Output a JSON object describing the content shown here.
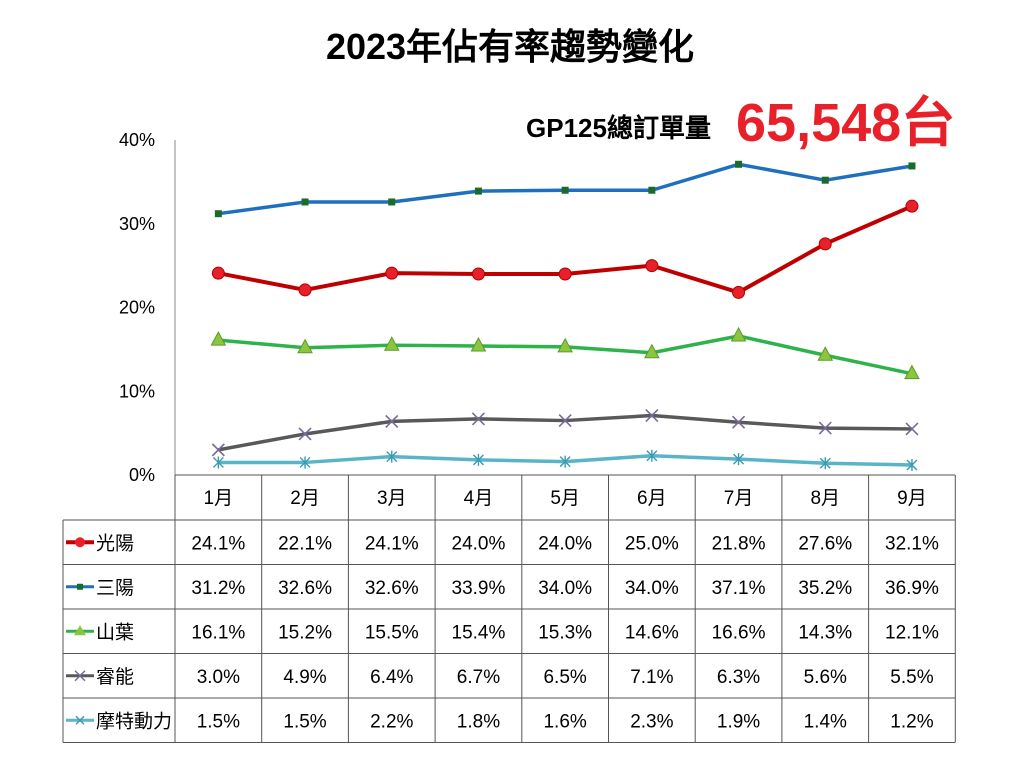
{
  "title": "2023年佔有率趨勢變化",
  "order_label": "GP125總訂單量",
  "order_value": "65,548台",
  "chart_data": {
    "type": "line",
    "title": "2023年佔有率趨勢變化",
    "categories": [
      "1月",
      "2月",
      "3月",
      "4月",
      "5月",
      "6月",
      "7月",
      "8月",
      "9月"
    ],
    "y_ticks": [
      "0%",
      "10%",
      "20%",
      "30%",
      "40%"
    ],
    "ylim": [
      0,
      40
    ],
    "grid": false,
    "legend": "data-table",
    "series": [
      {
        "name": "光陽",
        "color": "#c00000",
        "marker": "circle",
        "values": [
          24.1,
          22.1,
          24.1,
          24.0,
          24.0,
          25.0,
          21.8,
          27.6,
          32.1
        ],
        "labels": [
          "24.1%",
          "22.1%",
          "24.1%",
          "24.0%",
          "24.0%",
          "25.0%",
          "21.8%",
          "27.6%",
          "32.1%"
        ]
      },
      {
        "name": "三陽",
        "color": "#1f6fbf",
        "marker": "square",
        "values": [
          31.2,
          32.6,
          32.6,
          33.9,
          34.0,
          34.0,
          37.1,
          35.2,
          36.9
        ],
        "labels": [
          "31.2%",
          "32.6%",
          "32.6%",
          "33.9%",
          "34.0%",
          "34.0%",
          "37.1%",
          "35.2%",
          "36.9%"
        ]
      },
      {
        "name": "山葉",
        "color": "#2db34a",
        "marker": "triangle",
        "values": [
          16.1,
          15.2,
          15.5,
          15.4,
          15.3,
          14.6,
          16.6,
          14.3,
          12.1
        ],
        "labels": [
          "16.1%",
          "15.2%",
          "15.5%",
          "15.4%",
          "15.3%",
          "14.6%",
          "16.6%",
          "14.3%",
          "12.1%"
        ]
      },
      {
        "name": "睿能",
        "color": "#595959",
        "marker": "x",
        "values": [
          3.0,
          4.9,
          6.4,
          6.7,
          6.5,
          7.1,
          6.3,
          5.6,
          5.5
        ],
        "labels": [
          "3.0%",
          "4.9%",
          "6.4%",
          "6.7%",
          "6.5%",
          "7.1%",
          "6.3%",
          "5.6%",
          "5.5%"
        ]
      },
      {
        "name": "摩特動力",
        "color": "#5ab4c8",
        "marker": "star",
        "values": [
          1.5,
          1.5,
          2.2,
          1.8,
          1.6,
          2.3,
          1.9,
          1.4,
          1.2
        ],
        "labels": [
          "1.5%",
          "1.5%",
          "2.2%",
          "1.8%",
          "1.6%",
          "2.3%",
          "1.9%",
          "1.4%",
          "1.2%"
        ]
      }
    ]
  }
}
